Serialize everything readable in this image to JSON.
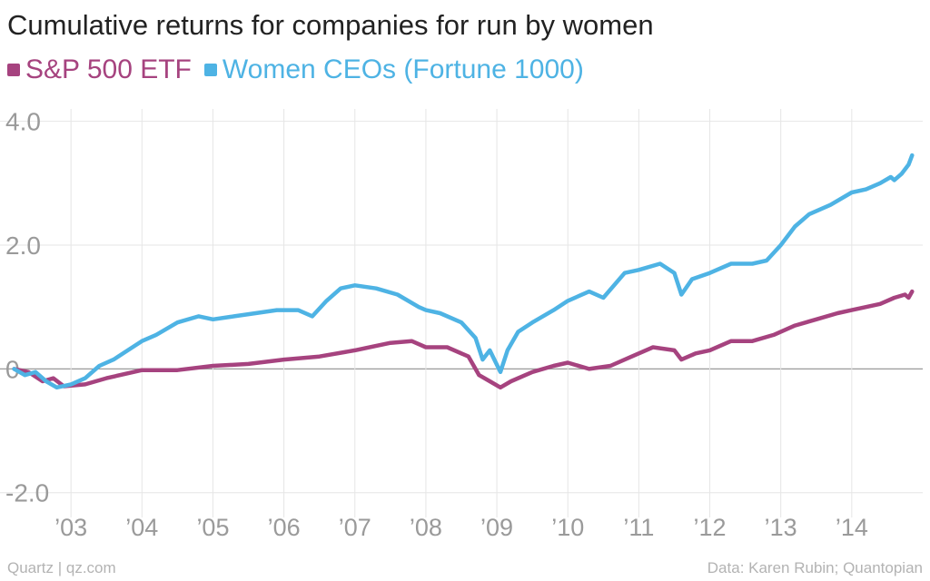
{
  "title": "Cumulative returns for companies for run by women",
  "footer": {
    "source_left": "Quartz | qz.com",
    "source_right": "Data: Karen Rubin; Quantopian"
  },
  "colors": {
    "sp500": "#a6437f",
    "women": "#4eb3e4",
    "grid": "#e6e6e6",
    "zero": "#9a9a9a",
    "tick": "#9a9a9a"
  },
  "chart_data": {
    "type": "line",
    "title": "Cumulative returns for companies for run by women",
    "xlabel": "",
    "ylabel": "",
    "xlim": [
      2002.0,
      2015.0
    ],
    "ylim": [
      -2.4,
      4.2
    ],
    "y_ticks": [
      -2.0,
      0,
      2.0,
      4.0
    ],
    "y_tick_labels": [
      "-2.0",
      "0",
      "2.0",
      "4.0"
    ],
    "x_ticks": [
      2003,
      2004,
      2005,
      2006,
      2007,
      2008,
      2009,
      2010,
      2011,
      2012,
      2013,
      2014
    ],
    "x_tick_labels": [
      "’03",
      "’04",
      "’05",
      "’06",
      "’07",
      "’08",
      "’09",
      "’10",
      "’11",
      "’12",
      "’13",
      "’14"
    ],
    "grid": true,
    "legend": "top-left",
    "series": [
      {
        "name": "S&P 500 ETF",
        "color": "#a6437f",
        "x": [
          2002.2,
          2002.4,
          2002.6,
          2002.75,
          2002.9,
          2003.2,
          2003.5,
          2004.0,
          2004.5,
          2005.0,
          2005.5,
          2006.0,
          2006.5,
          2007.0,
          2007.5,
          2007.8,
          2008.0,
          2008.3,
          2008.6,
          2008.75,
          2008.9,
          2009.05,
          2009.2,
          2009.5,
          2009.8,
          2010.0,
          2010.3,
          2010.6,
          2010.9,
          2011.2,
          2011.5,
          2011.6,
          2011.8,
          2012.0,
          2012.3,
          2012.6,
          2012.9,
          2013.2,
          2013.5,
          2013.8,
          2014.0,
          2014.2,
          2014.4,
          2014.6,
          2014.75,
          2014.8,
          2014.85
        ],
        "y": [
          0,
          -0.05,
          -0.2,
          -0.15,
          -0.28,
          -0.25,
          -0.15,
          -0.02,
          -0.02,
          0.05,
          0.08,
          0.15,
          0.2,
          0.3,
          0.42,
          0.45,
          0.35,
          0.35,
          0.2,
          -0.1,
          -0.2,
          -0.3,
          -0.2,
          -0.05,
          0.05,
          0.1,
          0.0,
          0.05,
          0.2,
          0.35,
          0.3,
          0.15,
          0.25,
          0.3,
          0.45,
          0.45,
          0.55,
          0.7,
          0.8,
          0.9,
          0.95,
          1.0,
          1.05,
          1.15,
          1.2,
          1.15,
          1.25
        ]
      },
      {
        "name": "Women CEOs (Fortune 1000)",
        "color": "#4eb3e4",
        "x": [
          2002.2,
          2002.35,
          2002.5,
          2002.65,
          2002.8,
          2003.0,
          2003.2,
          2003.4,
          2003.6,
          2003.8,
          2004.0,
          2004.2,
          2004.5,
          2004.8,
          2005.0,
          2005.3,
          2005.6,
          2005.9,
          2006.2,
          2006.4,
          2006.6,
          2006.8,
          2007.0,
          2007.3,
          2007.6,
          2007.9,
          2008.0,
          2008.2,
          2008.5,
          2008.7,
          2008.8,
          2008.9,
          2009.05,
          2009.15,
          2009.3,
          2009.5,
          2009.8,
          2010.0,
          2010.3,
          2010.5,
          2010.8,
          2011.0,
          2011.3,
          2011.5,
          2011.6,
          2011.75,
          2012.0,
          2012.3,
          2012.6,
          2012.8,
          2013.0,
          2013.2,
          2013.4,
          2013.7,
          2014.0,
          2014.2,
          2014.4,
          2014.55,
          2014.6,
          2014.7,
          2014.8,
          2014.85
        ],
        "y": [
          0,
          -0.1,
          -0.05,
          -0.2,
          -0.3,
          -0.25,
          -0.15,
          0.05,
          0.15,
          0.3,
          0.45,
          0.55,
          0.75,
          0.85,
          0.8,
          0.85,
          0.9,
          0.95,
          0.95,
          0.85,
          1.1,
          1.3,
          1.35,
          1.3,
          1.2,
          1.0,
          0.95,
          0.9,
          0.75,
          0.5,
          0.15,
          0.3,
          -0.05,
          0.3,
          0.6,
          0.75,
          0.95,
          1.1,
          1.25,
          1.15,
          1.55,
          1.6,
          1.7,
          1.55,
          1.2,
          1.45,
          1.55,
          1.7,
          1.7,
          1.75,
          2.0,
          2.3,
          2.5,
          2.65,
          2.85,
          2.9,
          3.0,
          3.1,
          3.05,
          3.15,
          3.3,
          3.45
        ]
      }
    ]
  }
}
